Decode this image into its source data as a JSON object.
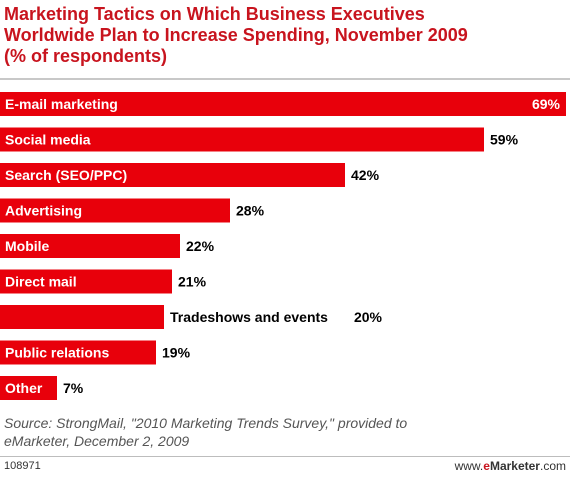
{
  "chart_data": {
    "type": "bar",
    "orientation": "horizontal",
    "title": [
      "Marketing Tactics on Which Business Executives",
      "Worldwide Plan to Increase Spending, November 2009",
      "(% of respondents)"
    ],
    "categories": [
      "E-mail marketing",
      "Social media",
      "Search (SEO/PPC)",
      "Advertising",
      "Mobile",
      "Direct mail",
      "Tradeshows and events",
      "Public relations",
      "Other"
    ],
    "values": [
      69,
      59,
      42,
      28,
      22,
      21,
      20,
      19,
      7
    ],
    "value_labels": [
      "69%",
      "59%",
      "42%",
      "28%",
      "22%",
      "21%",
      "20%",
      "19%",
      "7%"
    ],
    "xlim": [
      0,
      69
    ],
    "grid": false,
    "bar_color": "#e8000b"
  },
  "footer": {
    "source": [
      "Source: StrongMail, \"2010 Marketing Trends Survey,\" provided to",
      "eMarketer, December 2, 2009"
    ],
    "chart_id": "108971",
    "brand_prefix": "www.",
    "brand_e": "e",
    "brand_name": "Marketer",
    "brand_suffix": ".com"
  },
  "colors": {
    "title": "#c8141e",
    "bar": "#e8000b"
  }
}
